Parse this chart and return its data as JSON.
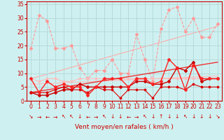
{
  "background_color": "#cff0f0",
  "grid_color": "#b0d8d8",
  "xlabel": "Vent moyen/en rafales ( km/h )",
  "ylim": [
    0,
    36
  ],
  "xlim": [
    -0.5,
    23.5
  ],
  "yticks": [
    0,
    5,
    10,
    15,
    20,
    25,
    30,
    35
  ],
  "xticks": [
    0,
    1,
    2,
    3,
    4,
    5,
    6,
    7,
    8,
    9,
    10,
    11,
    12,
    13,
    14,
    15,
    16,
    17,
    18,
    19,
    20,
    21,
    22,
    23
  ],
  "series": [
    {
      "x": [
        0,
        1,
        2,
        3,
        4,
        5,
        6,
        7,
        8,
        9,
        10,
        11,
        12,
        13,
        14,
        15,
        16,
        17,
        18,
        19,
        20,
        21,
        22,
        23
      ],
      "y": [
        19,
        31,
        29,
        19,
        19,
        20,
        12,
        8,
        11,
        11,
        15,
        10,
        10,
        24,
        15,
        7,
        26,
        33,
        34,
        25,
        30,
        23,
        23,
        28
      ],
      "color": "#ff9999",
      "linewidth": 0.8,
      "linestyle": "--",
      "marker": "D",
      "markersize": 2.0,
      "zorder": 2
    },
    {
      "x": [
        0,
        23
      ],
      "y": [
        8,
        27
      ],
      "color": "#ffaaaa",
      "linewidth": 0.8,
      "linestyle": "-",
      "marker": null,
      "markersize": 0,
      "zorder": 1
    },
    {
      "x": [
        0,
        1,
        2,
        3,
        4,
        5,
        6,
        7,
        8,
        9,
        10,
        11,
        12,
        13,
        14,
        15,
        16,
        17,
        18,
        19,
        20,
        21,
        22,
        23
      ],
      "y": [
        8,
        7,
        8,
        8,
        7,
        7,
        8,
        8,
        8,
        8,
        8,
        8,
        8,
        8,
        8,
        8,
        8,
        8,
        8,
        8,
        8,
        8,
        8,
        8
      ],
      "color": "#ffbbbb",
      "linewidth": 0.8,
      "linestyle": "-",
      "marker": "D",
      "markersize": 1.5,
      "zorder": 2
    },
    {
      "x": [
        0,
        23
      ],
      "y": [
        3,
        14
      ],
      "color": "#ee3333",
      "linewidth": 1.0,
      "linestyle": "-",
      "marker": null,
      "markersize": 0,
      "zorder": 3
    },
    {
      "x": [
        0,
        1,
        2,
        3,
        4,
        5,
        6,
        7,
        8,
        9,
        10,
        11,
        12,
        13,
        14,
        15,
        16,
        17,
        18,
        19,
        20,
        21,
        22,
        23
      ],
      "y": [
        3,
        2,
        2,
        3,
        4,
        4,
        6,
        5,
        5,
        5,
        5,
        5,
        5,
        7,
        7,
        6,
        6,
        7,
        12,
        11,
        14,
        7,
        8,
        8
      ],
      "color": "#cc0000",
      "linewidth": 1.0,
      "linestyle": "-",
      "marker": "D",
      "markersize": 2.0,
      "zorder": 4
    },
    {
      "x": [
        0,
        1,
        2,
        3,
        4,
        5,
        6,
        7,
        8,
        9,
        10,
        11,
        12,
        13,
        14,
        15,
        16,
        17,
        18,
        19,
        20,
        21,
        22,
        23
      ],
      "y": [
        3,
        3,
        3,
        4,
        5,
        4,
        4,
        3,
        5,
        4,
        4,
        1,
        4,
        4,
        4,
        1,
        5,
        5,
        5,
        4,
        6,
        5,
        5,
        5
      ],
      "color": "#dd0000",
      "linewidth": 0.8,
      "linestyle": "-",
      "marker": "D",
      "markersize": 1.5,
      "zorder": 4
    },
    {
      "x": [
        0,
        1,
        2,
        3,
        4,
        5,
        6,
        7,
        8,
        9,
        10,
        11,
        12,
        13,
        14,
        15,
        16,
        17,
        18,
        19,
        20,
        21,
        22,
        23
      ],
      "y": [
        8,
        3,
        7,
        5,
        6,
        5,
        5,
        2,
        5,
        8,
        8,
        8,
        5,
        8,
        8,
        6,
        7,
        15,
        12,
        4,
        13,
        8,
        8,
        8
      ],
      "color": "#ff2222",
      "linewidth": 1.0,
      "linestyle": "-",
      "marker": "D",
      "markersize": 2.0,
      "zorder": 5
    },
    {
      "x": [
        0,
        23
      ],
      "y": [
        6,
        9
      ],
      "color": "#ffbbbb",
      "linewidth": 0.8,
      "linestyle": "-",
      "marker": null,
      "markersize": 0,
      "zorder": 1
    }
  ],
  "wind_dirs": [
    "↘",
    "→",
    "←",
    "→",
    "↖",
    "↖",
    "↓",
    "←",
    "→",
    "↖",
    "↓",
    "↓",
    "←",
    "→",
    "↖",
    "↓",
    "↑",
    "↓",
    "↓",
    "↖",
    "↓",
    "↓",
    "↓",
    "↘"
  ],
  "xlabel_fontsize": 6.5,
  "tick_fontsize": 5.5,
  "wind_fontsize": 5.5,
  "axis_color": "#cc0000"
}
